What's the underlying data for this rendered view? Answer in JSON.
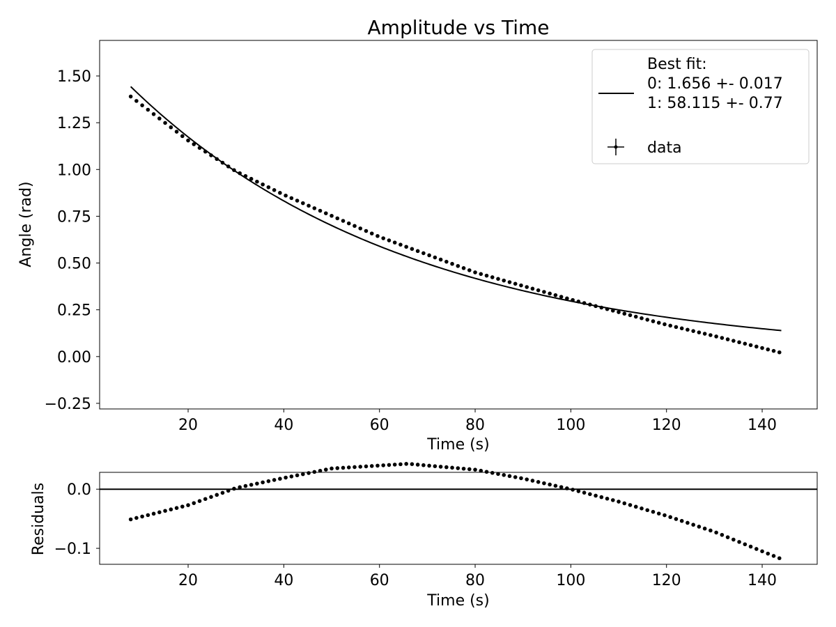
{
  "chart_data": [
    {
      "type": "scatter",
      "title": "Amplitude vs Time",
      "xlabel": "Time (s)",
      "ylabel": "Angle (rad)",
      "xlim": [
        1.5,
        151.5
      ],
      "ylim": [
        -0.28,
        1.69
      ],
      "xticks": [
        20,
        40,
        60,
        80,
        100,
        120,
        140
      ],
      "xtick_labels": [
        "20",
        "40",
        "60",
        "80",
        "100",
        "120",
        "140"
      ],
      "yticks": [
        -0.25,
        0,
        0.25,
        0.5,
        0.75,
        1.0,
        1.25,
        1.5
      ],
      "ytick_labels": [
        "−0.25",
        "0.00",
        "0.25",
        "0.50",
        "0.75",
        "1.00",
        "1.25",
        "1.50"
      ],
      "grid": false,
      "legend_position": "top-right",
      "legend": {
        "fit_label_lines": [
          "Best fit:",
          "0: 1.656 +- 0.017",
          "1: 58.115 +- 0.77"
        ],
        "data_label": "data"
      },
      "fit": {
        "model": "exponential decay",
        "amplitude": 1.656,
        "tau": 58.115,
        "x_start": 8,
        "x_end": 144
      },
      "series": [
        {
          "name": "data",
          "x_start": 8,
          "x_end": 144,
          "x_step": 1.2,
          "y_anchors": [
            [
              8,
              1.39
            ],
            [
              20,
              1.155
            ],
            [
              30,
              0.99
            ],
            [
              40,
              0.865
            ],
            [
              60,
              0.64
            ],
            [
              80,
              0.45
            ],
            [
              100,
              0.305
            ],
            [
              120,
              0.17
            ],
            [
              130,
              0.11
            ],
            [
              144,
              0.02
            ]
          ]
        }
      ]
    },
    {
      "type": "scatter",
      "title": "",
      "xlabel": "Time (s)",
      "ylabel": "Residuals",
      "xlim": [
        1.5,
        151.5
      ],
      "ylim": [
        -0.127,
        0.0285
      ],
      "xticks": [
        20,
        40,
        60,
        80,
        100,
        120,
        140
      ],
      "xtick_labels": [
        "20",
        "40",
        "60",
        "80",
        "100",
        "120",
        "140"
      ],
      "yticks": [
        -0.1,
        0.0
      ],
      "ytick_labels": [
        "−0.1",
        "0.0"
      ],
      "reference_line_y": 0.0,
      "grid": false,
      "series": [
        {
          "name": "residuals",
          "x_start": 8,
          "x_end": 144,
          "x_step": 1.2,
          "y_anchors": [
            [
              8,
              -0.051
            ],
            [
              20,
              -0.027
            ],
            [
              30,
              0.002
            ],
            [
              40,
              0.019
            ],
            [
              50,
              0.035
            ],
            [
              60,
              0.04
            ],
            [
              66,
              0.043
            ],
            [
              70,
              0.04
            ],
            [
              80,
              0.033
            ],
            [
              90,
              0.018
            ],
            [
              100,
              0.0
            ],
            [
              110,
              -0.021
            ],
            [
              120,
              -0.045
            ],
            [
              130,
              -0.072
            ],
            [
              140,
              -0.105
            ],
            [
              144,
              -0.118
            ]
          ]
        }
      ]
    }
  ]
}
